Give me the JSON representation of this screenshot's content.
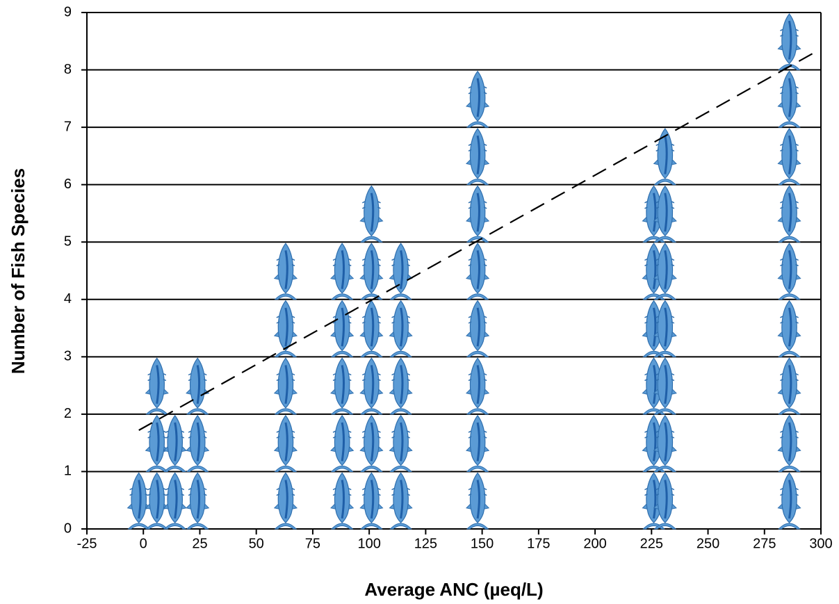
{
  "chart_data": {
    "type": "pictograph",
    "x_label": "Average ANC (µeq/L)",
    "y_label": "Number of Fish Species",
    "x": [
      -2,
      6,
      14,
      24,
      63,
      88,
      101,
      114,
      148,
      226,
      231,
      286
    ],
    "values": [
      1,
      3,
      2,
      3,
      5,
      5,
      6,
      5,
      8,
      6,
      7,
      9
    ],
    "color": "#5b9bd5",
    "trend": {
      "x": [
        -2,
        297
      ],
      "y": [
        1.72,
        8.3
      ]
    },
    "xlim": [
      -25,
      300
    ],
    "xticks": [
      -25,
      0,
      25,
      50,
      75,
      100,
      125,
      150,
      175,
      200,
      225,
      250,
      275,
      300
    ],
    "ylim": [
      0,
      9
    ],
    "yticks": [
      0,
      1,
      2,
      3,
      4,
      5,
      6,
      7,
      8,
      9
    ],
    "grid": true
  }
}
